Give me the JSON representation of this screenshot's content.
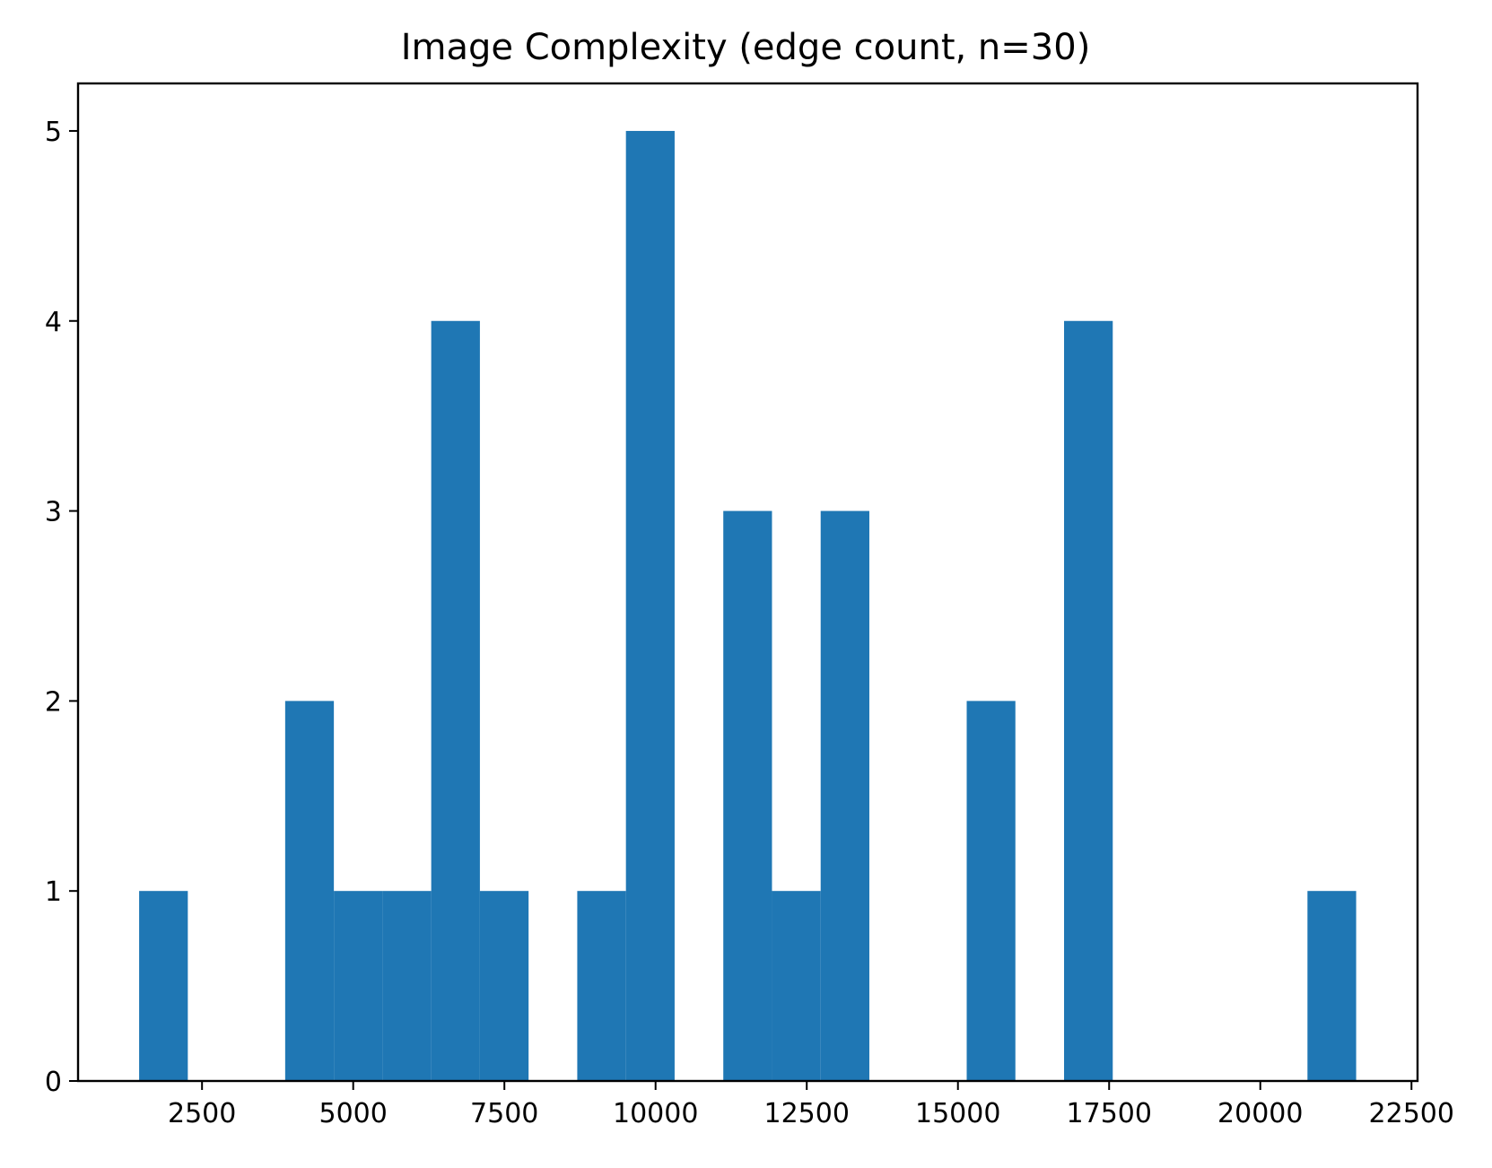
{
  "chart_data": {
    "type": "bar",
    "title": "Image Complexity (edge count, n=30)",
    "xlabel": "",
    "ylabel": "",
    "bar_color": "#1f77b4",
    "xlim": [
      450,
      22600
    ],
    "ylim": [
      0,
      5.25
    ],
    "x_ticks": [
      2500,
      5000,
      7500,
      10000,
      12500,
      15000,
      17500,
      20000,
      22500
    ],
    "x_tick_labels": [
      "2500",
      "5000",
      "7500",
      "10000",
      "12500",
      "15000",
      "17500",
      "20000",
      "22500"
    ],
    "y_ticks": [
      0,
      1,
      2,
      3,
      4,
      5
    ],
    "y_tick_labels": [
      "0",
      "1",
      "2",
      "3",
      "4",
      "5"
    ],
    "grid": false,
    "legend": "none",
    "bins": [
      {
        "x0": 1460,
        "x1": 2265,
        "count": 1
      },
      {
        "x0": 2265,
        "x1": 3070,
        "count": 0
      },
      {
        "x0": 3070,
        "x1": 3875,
        "count": 0
      },
      {
        "x0": 3875,
        "x1": 4680,
        "count": 2
      },
      {
        "x0": 4680,
        "x1": 5485,
        "count": 1
      },
      {
        "x0": 5485,
        "x1": 6290,
        "count": 1
      },
      {
        "x0": 6290,
        "x1": 7095,
        "count": 4
      },
      {
        "x0": 7095,
        "x1": 7900,
        "count": 1
      },
      {
        "x0": 7900,
        "x1": 8705,
        "count": 0
      },
      {
        "x0": 8705,
        "x1": 9510,
        "count": 1
      },
      {
        "x0": 9510,
        "x1": 10315,
        "count": 5
      },
      {
        "x0": 10315,
        "x1": 11120,
        "count": 0
      },
      {
        "x0": 11120,
        "x1": 11925,
        "count": 3
      },
      {
        "x0": 11925,
        "x1": 12730,
        "count": 1
      },
      {
        "x0": 12730,
        "x1": 13535,
        "count": 3
      },
      {
        "x0": 13535,
        "x1": 14340,
        "count": 0
      },
      {
        "x0": 14340,
        "x1": 15145,
        "count": 0
      },
      {
        "x0": 15145,
        "x1": 15950,
        "count": 2
      },
      {
        "x0": 15950,
        "x1": 16755,
        "count": 0
      },
      {
        "x0": 16755,
        "x1": 17560,
        "count": 4
      },
      {
        "x0": 17560,
        "x1": 18365,
        "count": 0
      },
      {
        "x0": 18365,
        "x1": 19170,
        "count": 0
      },
      {
        "x0": 19170,
        "x1": 19975,
        "count": 0
      },
      {
        "x0": 19975,
        "x1": 20780,
        "count": 0
      },
      {
        "x0": 20780,
        "x1": 21585,
        "count": 1
      }
    ]
  }
}
